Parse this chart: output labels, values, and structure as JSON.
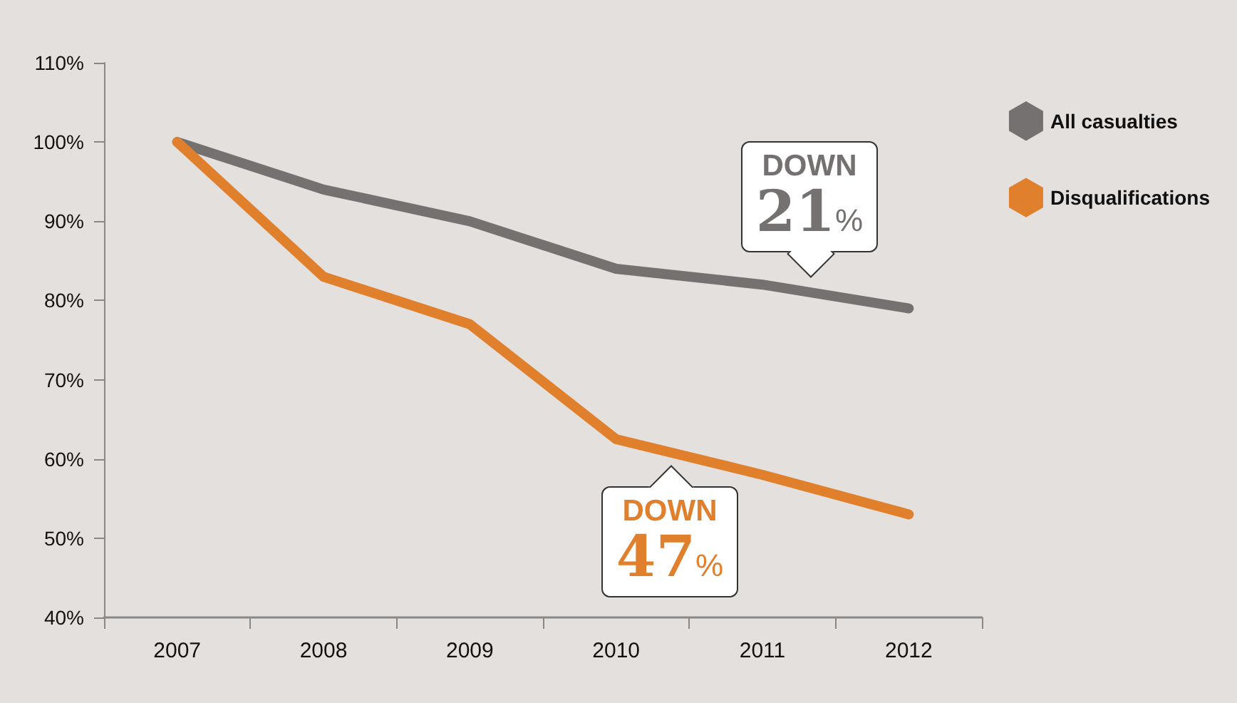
{
  "chart_data": {
    "type": "line",
    "categories": [
      "2007",
      "2008",
      "2009",
      "2010",
      "2011",
      "2012"
    ],
    "series": [
      {
        "name": "All casualties",
        "color": "#767171",
        "values": [
          100,
          94,
          90,
          84,
          82,
          79
        ]
      },
      {
        "name": "Disqualifications",
        "color": "#e07f2c",
        "values": [
          100,
          83,
          77,
          62.5,
          58,
          53
        ]
      }
    ],
    "ylim": [
      40,
      110
    ],
    "yticks": [
      {
        "value": 40,
        "label": "40%"
      },
      {
        "value": 50,
        "label": "50%"
      },
      {
        "value": 60,
        "label": "60%"
      },
      {
        "value": 70,
        "label": "70%"
      },
      {
        "value": 80,
        "label": "80%"
      },
      {
        "value": 90,
        "label": "90%"
      },
      {
        "value": 100,
        "label": "100%"
      },
      {
        "value": 110,
        "label": "110%"
      }
    ],
    "annotations": [
      {
        "text": "DOWN 21%",
        "x": "2011",
        "y": 81
      },
      {
        "text": "DOWN 47%",
        "x": "2011",
        "y": 58
      }
    ],
    "grid": false,
    "legend": "right",
    "marker": "none",
    "line_style": "solid"
  }
}
